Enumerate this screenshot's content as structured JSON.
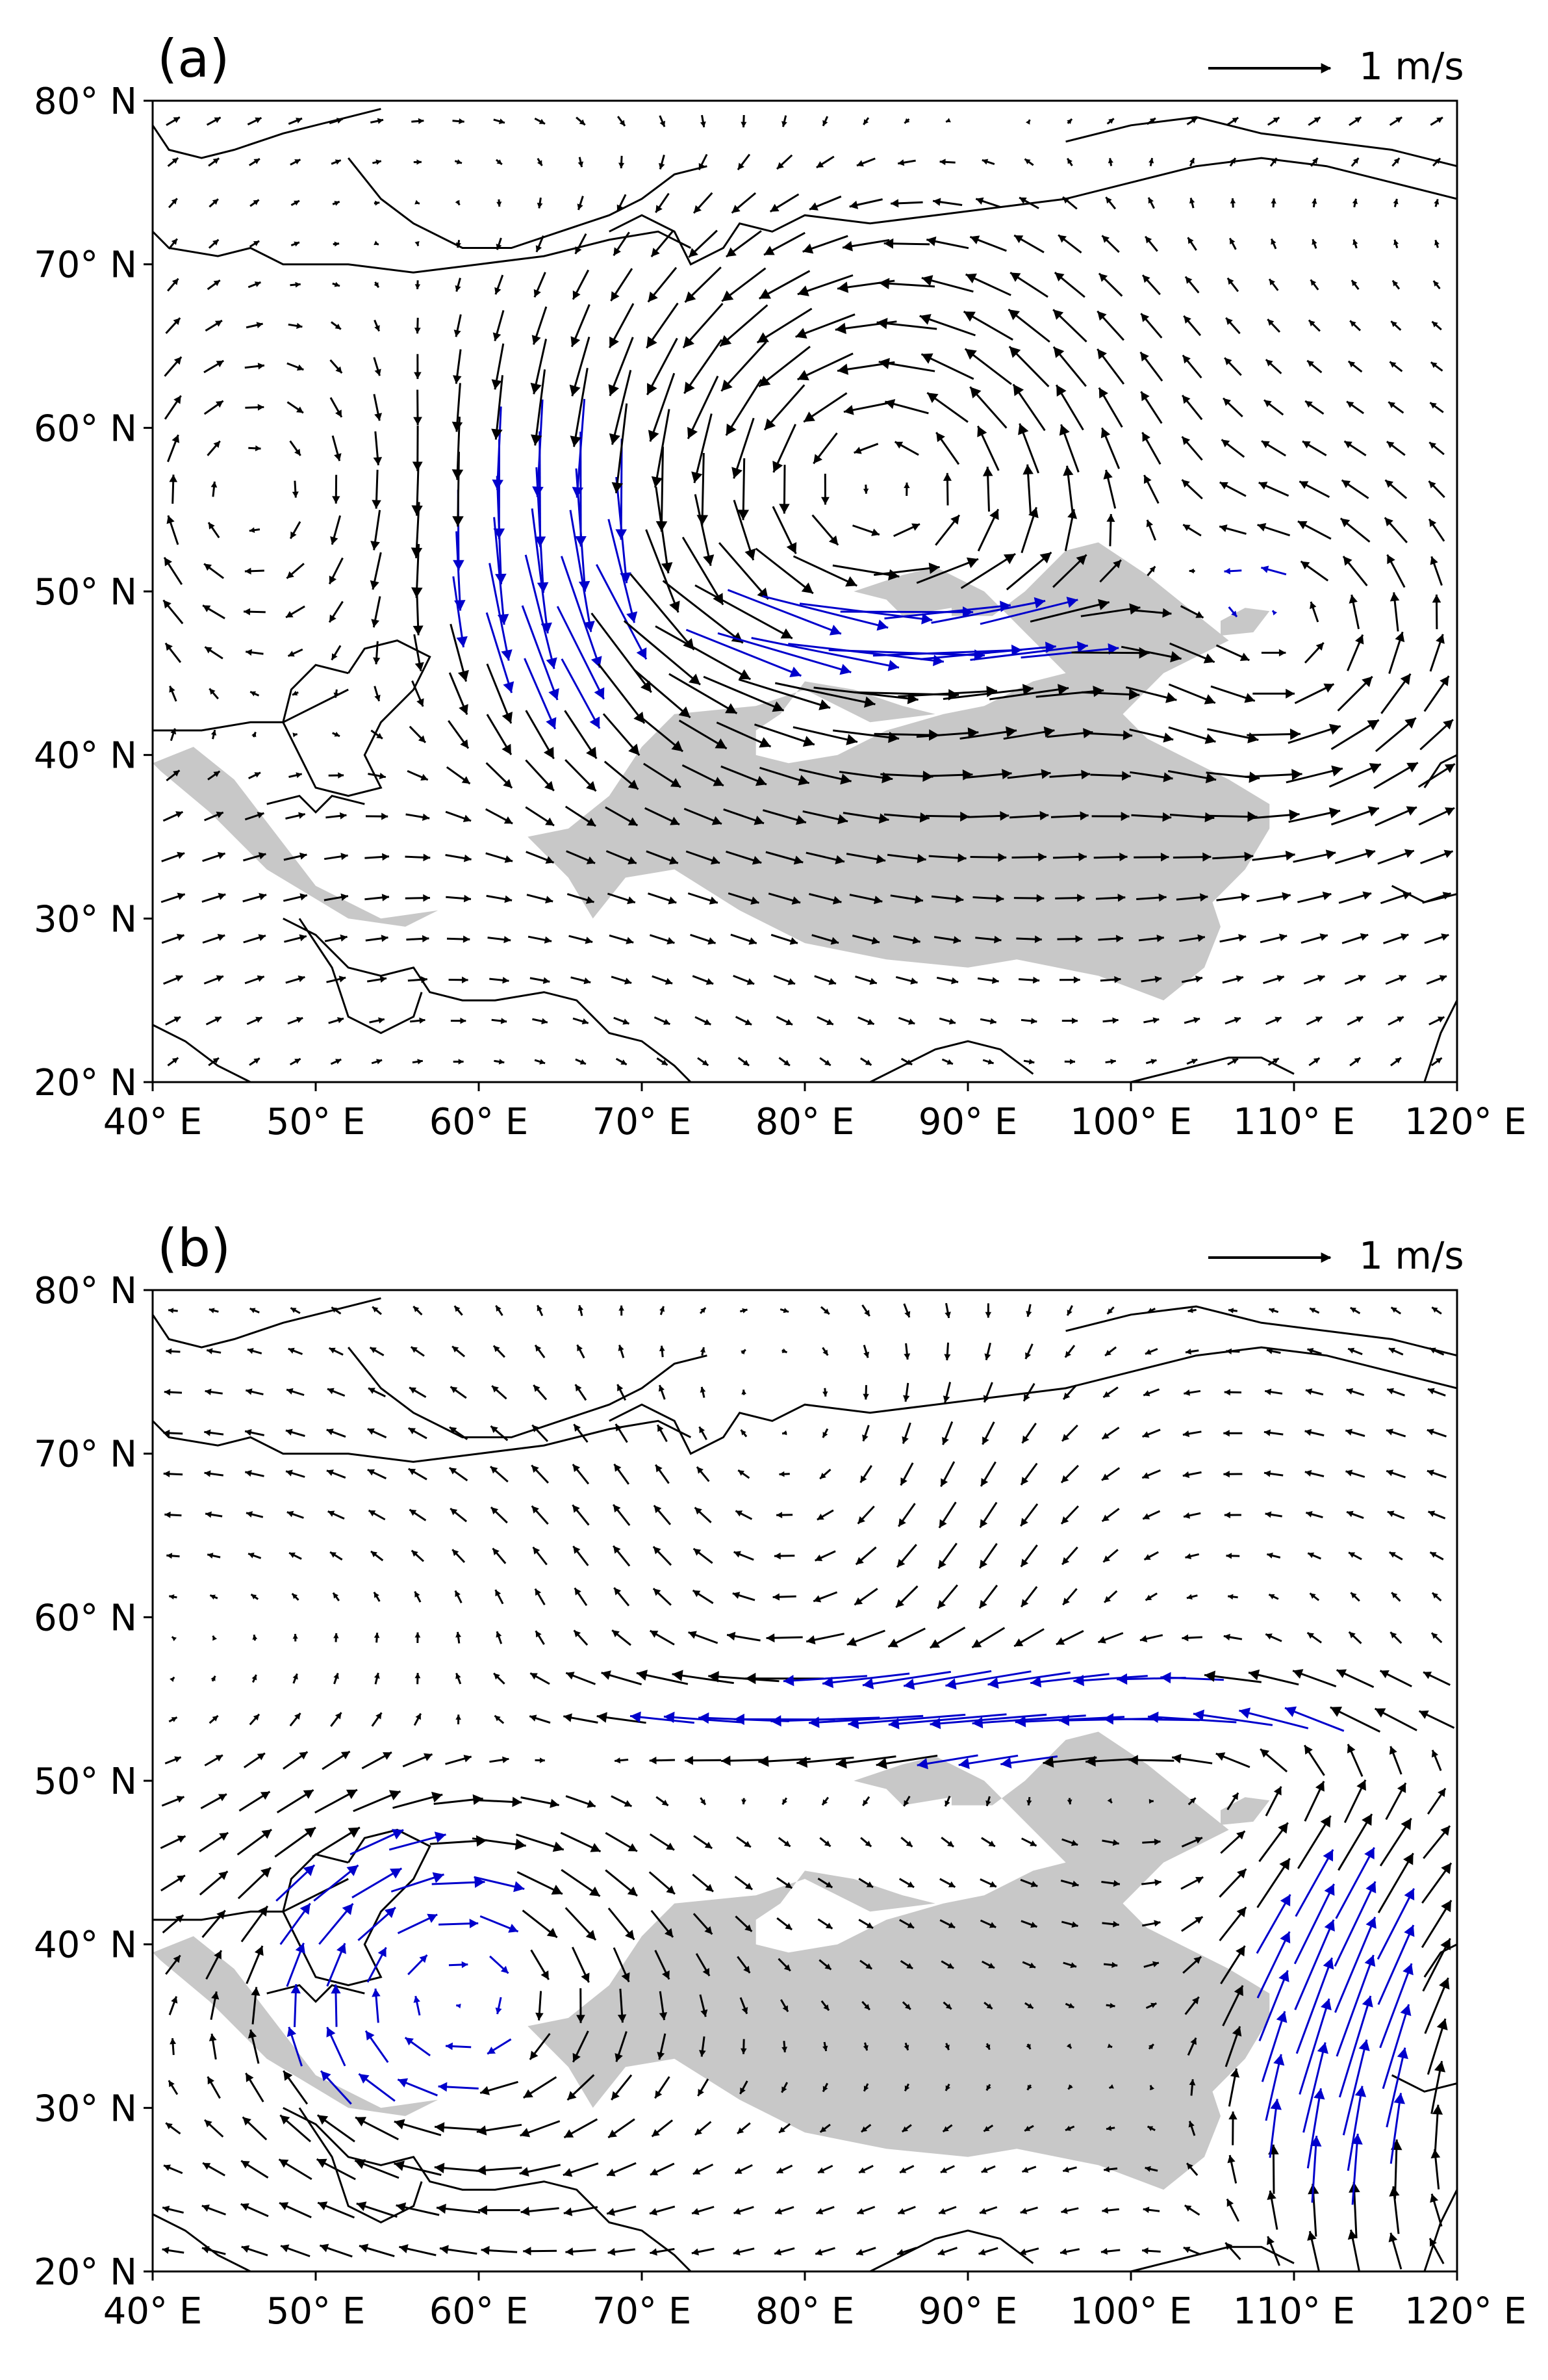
{
  "panels": [
    {
      "id": "a",
      "label": "(a)",
      "scale_label": "1 m/s",
      "x_ticks": [
        "40° E",
        "50° E",
        "60° E",
        "70° E",
        "80° E",
        "90° E",
        "100° E",
        "110° E",
        "120° E"
      ],
      "y_ticks": [
        "80° N",
        "70° N",
        "60° N",
        "50° N",
        "40° N",
        "30° N",
        "20° N"
      ]
    },
    {
      "id": "b",
      "label": "(b)",
      "scale_label": "1 m/s",
      "x_ticks": [
        "40° E",
        "50° E",
        "60° E",
        "70° E",
        "80° E",
        "90° E",
        "100° E",
        "110° E",
        "120° E"
      ],
      "y_ticks": [
        "80° N",
        "70° N",
        "60° N",
        "50° N",
        "40° N",
        "30° N",
        "20° N"
      ]
    }
  ],
  "map_extent": {
    "lon_range": [
      40,
      120
    ],
    "lat_range": [
      20,
      80
    ]
  },
  "colors": {
    "vector_default": "#000000",
    "vector_significant": "#0000cc",
    "terrain_mask": "#c8c8c8",
    "coastline": "#000000"
  },
  "chart_data": [
    {
      "type": "vector_field",
      "panel": "a",
      "reference_vector": {
        "magnitude": 1,
        "unit": "m/s"
      },
      "xlim": [
        40,
        120
      ],
      "ylim": [
        20,
        80
      ],
      "features": [
        {
          "kind": "anticyclone",
          "lon": 45,
          "lat": 55
        },
        {
          "kind": "northerly_flow",
          "lon_range": [
            55,
            72
          ],
          "lat_range": [
            40,
            62
          ],
          "significant": true
        },
        {
          "kind": "cyclone",
          "lon": 85,
          "lat": 57
        },
        {
          "kind": "westerly_jet",
          "lon_range": [
            73,
            100
          ],
          "lat_range": [
            43,
            50
          ],
          "significant": true
        },
        {
          "kind": "northerly_flow",
          "lon_range": [
            106,
            112
          ],
          "lat_range": [
            46,
            54
          ],
          "significant": true
        }
      ]
    },
    {
      "type": "vector_field",
      "panel": "b",
      "reference_vector": {
        "magnitude": 1,
        "unit": "m/s"
      },
      "xlim": [
        40,
        120
      ],
      "ylim": [
        20,
        80
      ],
      "features": [
        {
          "kind": "easterly_flow",
          "lon_range": [
            70,
            120
          ],
          "lat_range": [
            50,
            57
          ],
          "significant": true
        },
        {
          "kind": "southerly_flow",
          "lon_range": [
            103,
            120
          ],
          "lat_range": [
            20,
            50
          ],
          "significant": true
        },
        {
          "kind": "cyclonic_turning",
          "lon_range": [
            40,
            70
          ],
          "lat_range": [
            20,
            48
          ],
          "significant": true
        }
      ]
    }
  ]
}
